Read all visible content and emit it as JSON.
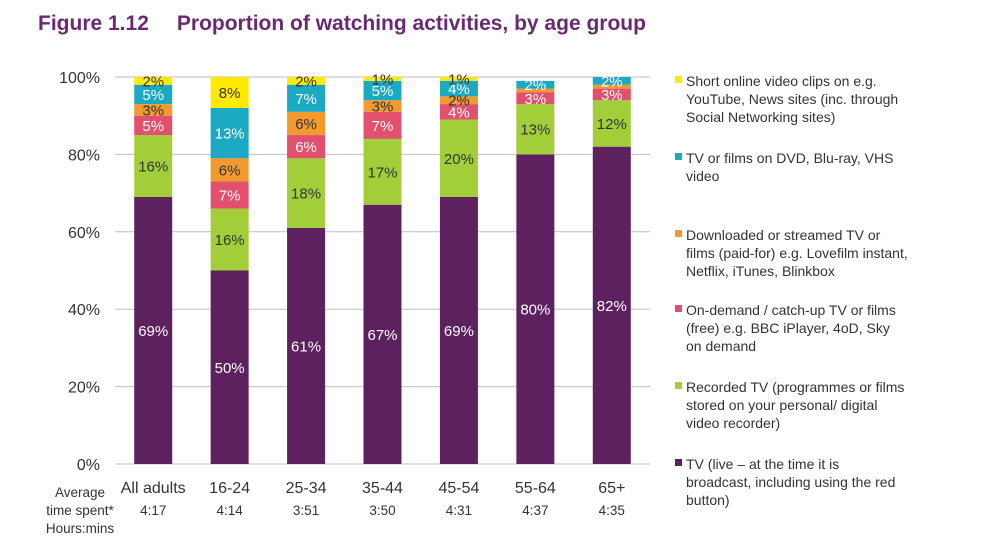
{
  "figure": {
    "number": "Figure 1.12",
    "title": "Proportion of watching activities, by age group"
  },
  "avg_time_label": "Average\ntime spent*\nHours:mins",
  "chart_data": {
    "type": "bar",
    "stacked": true,
    "categories": [
      "All adults",
      "16-24",
      "25-34",
      "35-44",
      "45-54",
      "55-64",
      "65+"
    ],
    "avg_time": [
      "4:17",
      "4:14",
      "3:51",
      "3:50",
      "4:31",
      "4:37",
      "4:35"
    ],
    "ylim": [
      0,
      100
    ],
    "yticks": [
      "0%",
      "20%",
      "40%",
      "60%",
      "80%",
      "100%"
    ],
    "grid": true,
    "legend_position": "right",
    "series": [
      {
        "name": "TV (live – at the time it is broadcast, including using the red button)",
        "color": "#5e2160",
        "label_color": "#ffffff",
        "values": [
          69,
          50,
          61,
          67,
          69,
          80,
          82
        ],
        "labels": [
          "69%",
          "50%",
          "61%",
          "67%",
          "69%",
          "80%",
          "82%"
        ]
      },
      {
        "name": "Recorded TV (programmes or films stored on your personal/ digital video recorder)",
        "color": "#a2cf39",
        "label_color": "#333333",
        "values": [
          16,
          16,
          18,
          17,
          20,
          13,
          12
        ],
        "labels": [
          "16%",
          "16%",
          "18%",
          "17%",
          "20%",
          "13%",
          "12%"
        ]
      },
      {
        "name": "On-demand / catch-up TV or films (free) e.g. BBC iPlayer, 4oD, Sky on demand",
        "color": "#e2506e",
        "label_color": "#ffffff",
        "values": [
          5,
          7,
          6,
          7,
          4,
          3,
          3
        ],
        "labels": [
          "5%",
          "7%",
          "6%",
          "7%",
          "4%",
          "3%",
          "3%"
        ]
      },
      {
        "name": "Downloaded or streamed TV or films (paid-for) e.g. Lovefilm instant, Netflix, iTunes, Blinkbox",
        "color": "#f29a2e",
        "label_color": "#333333",
        "values": [
          3,
          6,
          6,
          3,
          2,
          1,
          1
        ],
        "labels": [
          "3%",
          "6%",
          "6%",
          "3%",
          "2%",
          "",
          ""
        ]
      },
      {
        "name": "TV or films  on DVD, Blu-ray, VHS video",
        "color": "#1ca9c3",
        "label_color": "#ffffff",
        "values": [
          5,
          13,
          7,
          5,
          4,
          2,
          2
        ],
        "labels": [
          "5%",
          "13%",
          "7%",
          "5%",
          "4%",
          "2%",
          "2%"
        ]
      },
      {
        "name": "Short online video clips on e.g. YouTube, News sites (inc. through Social Networking sites)",
        "color": "#ffea00",
        "label_color": "#333333",
        "values": [
          2,
          8,
          2,
          1,
          1,
          0,
          0
        ],
        "labels": [
          "2%",
          "8%",
          "2%",
          "1%",
          "1%",
          "",
          ""
        ]
      }
    ],
    "legend_lines": [
      "Short online video clips on e.g.\nYouTube, News sites (inc. through\nSocial Networking sites)",
      "TV or films  on DVD, Blu-ray, VHS\nvideo",
      "Downloaded or streamed TV or\nfilms (paid-for) e.g. Lovefilm instant,\nNetflix, iTunes, Blinkbox",
      "On-demand / catch-up TV or films\n(free) e.g. BBC iPlayer, 4oD, Sky\non demand",
      "Recorded TV (programmes or films\nstored on your personal/ digital\nvideo recorder)",
      "TV (live – at the time it is\nbroadcast, including using the red\nbutton)"
    ],
    "legend_colors": [
      "#ffea00",
      "#1ca9c3",
      "#f29a2e",
      "#e2506e",
      "#a2cf39",
      "#5e2160"
    ]
  }
}
